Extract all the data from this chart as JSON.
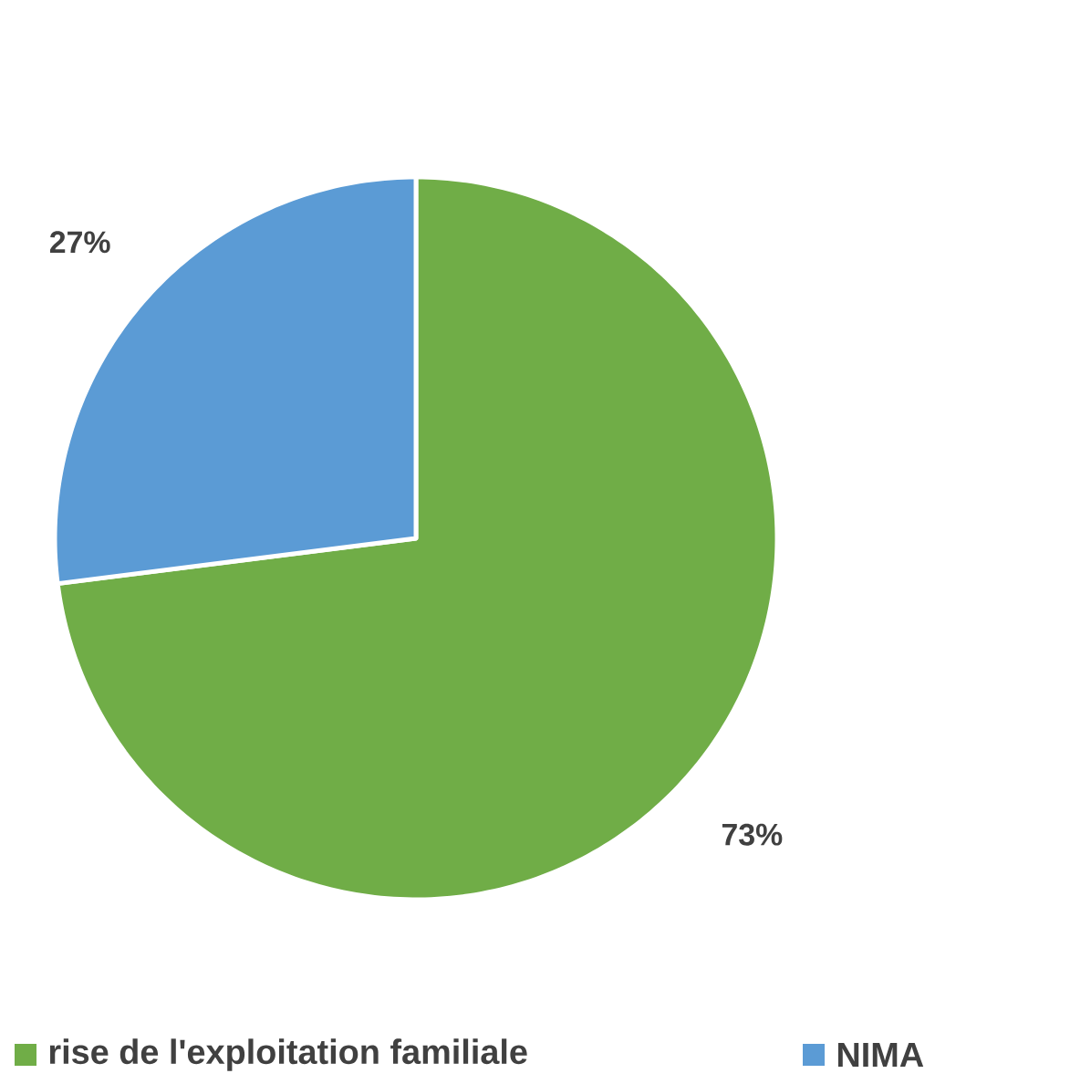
{
  "chart_data": {
    "type": "pie",
    "categories": [
      "rise de l'exploitation familiale",
      "NIMA"
    ],
    "values": [
      73,
      27
    ],
    "colors": [
      "#70ad47",
      "#5b9bd5"
    ],
    "value_labels": [
      "73%",
      "27%"
    ],
    "legend": "bottom"
  }
}
